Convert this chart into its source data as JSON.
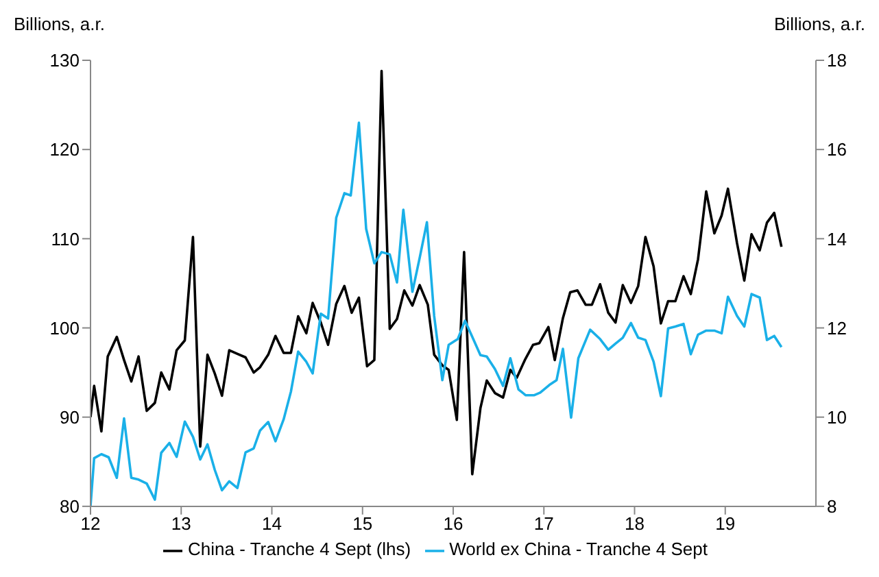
{
  "chart_data": {
    "type": "line",
    "ylabel": "Billions, a.r.",
    "y2label": "Billions, a.r.",
    "xlim": [
      12,
      20
    ],
    "xticks": [
      12,
      13,
      14,
      15,
      16,
      17,
      18,
      19
    ],
    "ylim": [
      80,
      130
    ],
    "yticks": [
      80,
      90,
      100,
      110,
      120,
      130
    ],
    "y2lim": [
      8,
      18
    ],
    "y2ticks": [
      8,
      10,
      12,
      14,
      16,
      18
    ],
    "legend": "bottom",
    "grid": false,
    "marker": "none",
    "line_style": "solid",
    "series": [
      {
        "name": "China - Tranche 4 Sept (lhs)",
        "color": "#000000",
        "x": [
          12.0,
          12.04,
          12.12,
          12.19,
          12.29,
          12.37,
          12.45,
          12.53,
          12.62,
          12.71,
          12.78,
          12.87,
          12.95,
          13.04,
          13.13,
          13.21,
          13.29,
          13.37,
          13.45,
          13.53,
          13.62,
          13.71,
          13.8,
          13.87,
          13.96,
          14.04,
          14.13,
          14.21,
          14.29,
          14.38,
          14.45,
          14.54,
          14.62,
          14.71,
          14.8,
          14.88,
          14.96,
          15.05,
          15.13,
          15.21,
          15.3,
          15.38,
          15.46,
          15.55,
          15.63,
          15.72,
          15.79,
          15.88,
          15.95,
          16.04,
          16.12,
          16.21,
          16.3,
          16.37,
          16.46,
          16.55,
          16.63,
          16.7,
          16.79,
          16.88,
          16.95,
          17.05,
          17.12,
          17.21,
          17.29,
          17.37,
          17.46,
          17.53,
          17.62,
          17.71,
          17.79,
          17.87,
          17.96,
          18.04,
          18.12,
          18.21,
          18.29,
          18.37,
          18.45,
          18.54,
          18.62,
          18.7,
          18.79,
          18.88,
          18.96,
          19.03,
          19.13,
          19.21,
          19.29,
          19.38,
          19.46,
          19.54,
          19.62
        ],
        "values": [
          90.0,
          93.5,
          88.4,
          96.8,
          99.0,
          96.4,
          94.0,
          96.8,
          90.7,
          91.6,
          95.0,
          93.1,
          97.5,
          98.6,
          110.2,
          86.7,
          97.0,
          94.9,
          92.4,
          97.5,
          97.1,
          96.7,
          95.0,
          95.6,
          97.0,
          99.1,
          97.2,
          97.2,
          101.3,
          99.4,
          102.8,
          100.6,
          98.1,
          102.7,
          104.7,
          101.7,
          103.4,
          95.7,
          96.4,
          128.8,
          99.9,
          101.0,
          104.2,
          102.5,
          104.8,
          102.6,
          97.0,
          95.8,
          95.3,
          89.7,
          108.5,
          83.6,
          91.0,
          94.1,
          92.7,
          92.2,
          95.3,
          94.4,
          96.4,
          98.1,
          98.3,
          100.1,
          96.4,
          101.1,
          104.0,
          104.2,
          102.6,
          102.6,
          104.9,
          101.7,
          100.6,
          104.8,
          102.8,
          104.7,
          110.2,
          106.9,
          100.5,
          103.0,
          103.0,
          105.8,
          103.8,
          107.7,
          115.3,
          110.6,
          112.6,
          115.6,
          109.5,
          105.3,
          110.5,
          108.7,
          111.8,
          112.9,
          109.1
        ]
      },
      {
        "name": "World ex China - Tranche 4 Sept",
        "color": "#1ab0e8",
        "axis": "y2",
        "x": [
          12.0,
          12.04,
          12.12,
          12.2,
          12.29,
          12.37,
          12.45,
          12.53,
          12.62,
          12.71,
          12.78,
          12.87,
          12.95,
          13.04,
          13.13,
          13.21,
          13.29,
          13.37,
          13.45,
          13.53,
          13.62,
          13.71,
          13.8,
          13.87,
          13.96,
          14.04,
          14.13,
          14.21,
          14.29,
          14.38,
          14.45,
          14.54,
          14.62,
          14.71,
          14.8,
          14.87,
          14.96,
          15.04,
          15.13,
          15.21,
          15.3,
          15.38,
          15.45,
          15.55,
          15.63,
          15.71,
          15.79,
          15.88,
          15.95,
          16.05,
          16.13,
          16.21,
          16.3,
          16.37,
          16.46,
          16.55,
          16.63,
          16.72,
          16.8,
          16.89,
          16.96,
          17.06,
          17.14,
          17.21,
          17.3,
          17.38,
          17.51,
          17.62,
          17.71,
          17.79,
          17.87,
          17.96,
          18.04,
          18.12,
          18.21,
          18.29,
          18.37,
          18.45,
          18.54,
          18.62,
          18.7,
          18.79,
          18.88,
          18.96,
          19.03,
          19.13,
          19.21,
          19.29,
          19.38,
          19.46,
          19.54,
          19.62
        ],
        "values": [
          8.0,
          9.08,
          9.17,
          9.1,
          8.64,
          9.97,
          8.64,
          8.6,
          8.51,
          8.15,
          9.2,
          9.42,
          9.11,
          9.9,
          9.56,
          9.05,
          9.39,
          8.82,
          8.36,
          8.56,
          8.41,
          9.21,
          9.3,
          9.7,
          9.89,
          9.46,
          9.95,
          10.57,
          11.47,
          11.24,
          10.98,
          12.32,
          12.21,
          14.47,
          15.02,
          14.97,
          16.6,
          14.22,
          13.45,
          13.7,
          13.65,
          13.02,
          14.65,
          12.81,
          13.57,
          14.37,
          12.27,
          10.83,
          11.62,
          11.75,
          12.16,
          11.8,
          11.39,
          11.36,
          11.08,
          10.7,
          11.32,
          10.62,
          10.49,
          10.49,
          10.55,
          10.72,
          10.83,
          11.53,
          9.99,
          11.32,
          11.96,
          11.75,
          11.51,
          11.65,
          11.78,
          12.11,
          11.78,
          11.73,
          11.24,
          10.47,
          11.99,
          12.03,
          12.09,
          11.41,
          11.85,
          11.94,
          11.94,
          11.88,
          12.7,
          12.27,
          12.03,
          12.76,
          12.68,
          11.73,
          11.82,
          11.57
        ]
      }
    ]
  }
}
